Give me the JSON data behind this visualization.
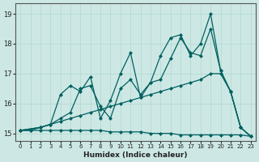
{
  "xlabel": "Humidex (Indice chaleur)",
  "background_color": "#cde8e4",
  "grid_color": "#b0d8d0",
  "line_color": "#006060",
  "xlim": [
    -0.5,
    23.5
  ],
  "ylim": [
    14.75,
    19.35
  ],
  "yticks": [
    15,
    16,
    17,
    18,
    19
  ],
  "xticks": [
    0,
    1,
    2,
    3,
    4,
    5,
    6,
    7,
    8,
    9,
    10,
    11,
    12,
    13,
    14,
    15,
    16,
    17,
    18,
    19,
    20,
    21,
    22,
    23
  ],
  "series": [
    {
      "x": [
        0,
        1,
        2,
        3,
        4,
        5,
        6,
        7,
        8,
        9,
        10,
        11,
        12,
        13,
        14,
        15,
        16,
        17,
        18,
        19,
        20,
        21,
        22,
        23
      ],
      "y": [
        15.1,
        15.1,
        15.1,
        15.1,
        15.1,
        15.1,
        15.1,
        15.1,
        15.1,
        15.05,
        15.05,
        15.05,
        15.05,
        15.0,
        15.0,
        15.0,
        14.95,
        14.95,
        14.95,
        14.95,
        14.95,
        14.95,
        14.95,
        14.9
      ]
    },
    {
      "x": [
        0,
        1,
        2,
        3,
        4,
        5,
        6,
        7,
        8,
        9,
        10,
        11,
        12,
        13,
        14,
        15,
        16,
        17,
        18,
        19,
        20,
        21,
        22,
        23
      ],
      "y": [
        15.1,
        15.1,
        15.2,
        15.3,
        15.4,
        15.5,
        15.6,
        15.7,
        15.8,
        15.9,
        16.0,
        16.1,
        16.2,
        16.3,
        16.4,
        16.5,
        16.6,
        16.7,
        16.8,
        17.0,
        17.0,
        16.4,
        15.2,
        14.9
      ]
    },
    {
      "x": [
        0,
        2,
        3,
        4,
        5,
        6,
        7,
        8,
        9,
        10,
        11,
        12,
        13,
        14,
        15,
        16,
        17,
        18,
        19,
        20,
        21,
        22,
        23
      ],
      "y": [
        15.1,
        15.2,
        15.3,
        15.5,
        15.7,
        16.5,
        16.6,
        15.9,
        15.5,
        16.5,
        16.8,
        16.3,
        16.7,
        16.8,
        17.5,
        18.2,
        17.7,
        17.6,
        18.5,
        17.1,
        16.4,
        15.2,
        14.9
      ]
    },
    {
      "x": [
        0,
        2,
        3,
        4,
        5,
        6,
        7,
        8,
        9,
        10,
        11,
        12,
        13,
        14,
        15,
        16,
        17,
        18,
        19,
        20,
        21,
        22,
        23
      ],
      "y": [
        15.1,
        15.2,
        15.3,
        16.3,
        16.6,
        16.4,
        16.9,
        15.5,
        16.1,
        17.0,
        17.7,
        16.2,
        16.7,
        17.6,
        18.2,
        18.3,
        17.6,
        18.0,
        19.0,
        17.1,
        16.4,
        15.2,
        14.9
      ]
    }
  ]
}
